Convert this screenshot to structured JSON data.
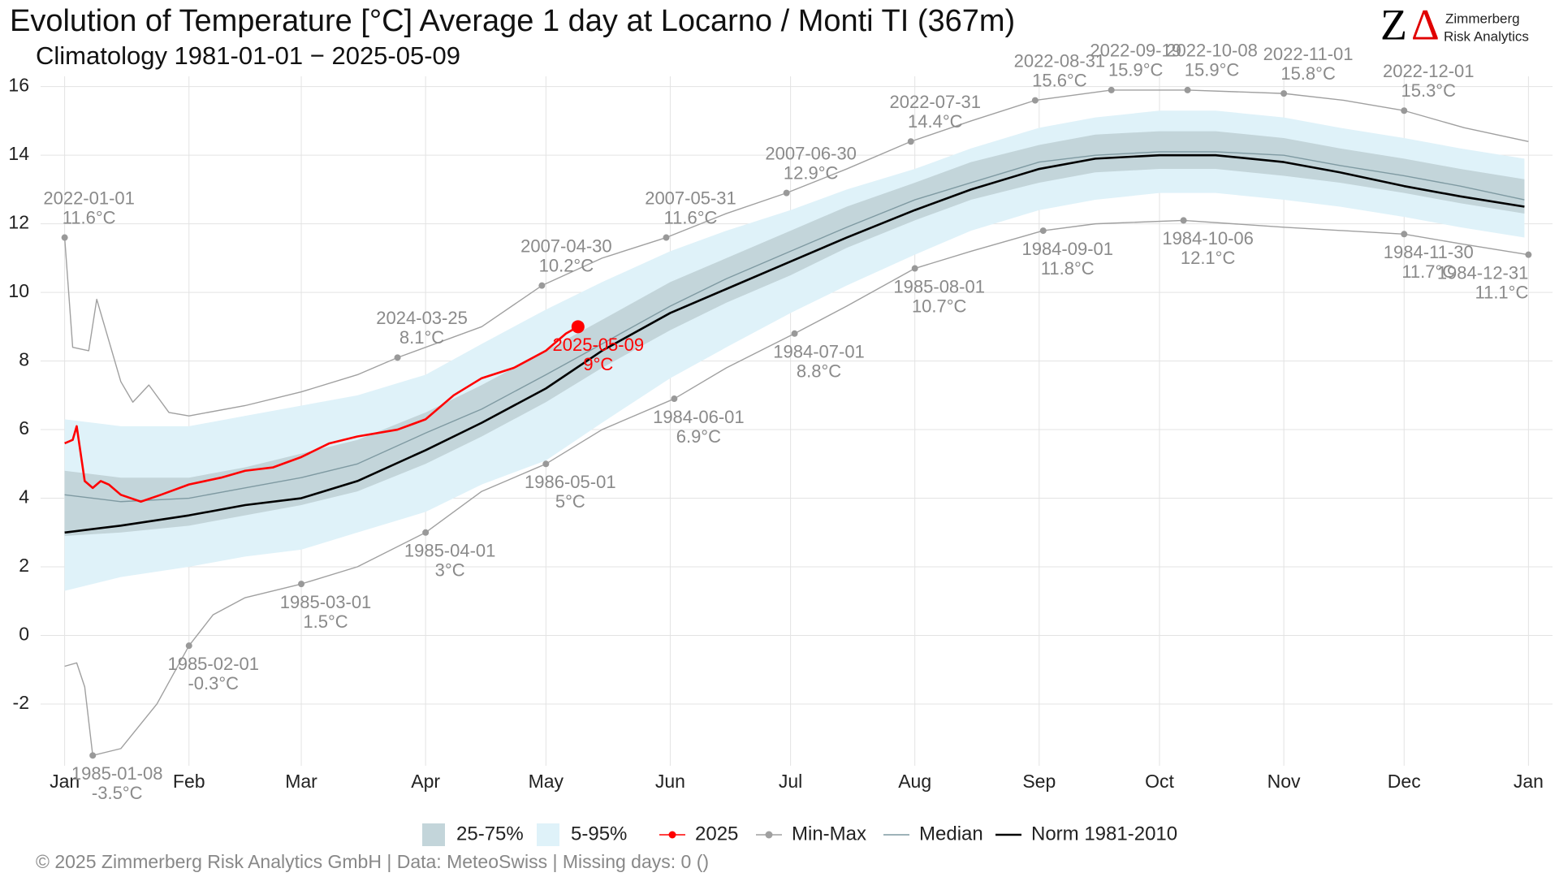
{
  "chart_data": {
    "type": "climate",
    "title": "Evolution of Temperature [°C] Average 1 day at Locarno / Monti  TI (367m)",
    "subtitle": "Climatology 1981-01-01 − 2025-05-09",
    "logo": {
      "mark_z": "Z",
      "mark_delta": "Δ",
      "line1": "Zimmerberg",
      "line2": "Risk Analytics"
    },
    "footer": "©  2025 Zimmerberg Risk Analytics GmbH | Data: MeteoSwiss | Missing days: 0 ()",
    "xlim": [
      -5,
      372
    ],
    "ylim": [
      -3.8,
      16.3
    ],
    "yticks": [
      -2,
      0,
      2,
      4,
      6,
      8,
      10,
      12,
      14,
      16
    ],
    "xticks": [
      {
        "value": 1,
        "label": "Jan"
      },
      {
        "value": 32,
        "label": "Feb"
      },
      {
        "value": 60,
        "label": "Mar"
      },
      {
        "value": 91,
        "label": "Apr"
      },
      {
        "value": 121,
        "label": "May"
      },
      {
        "value": 152,
        "label": "Jun"
      },
      {
        "value": 182,
        "label": "Jul"
      },
      {
        "value": 213,
        "label": "Aug"
      },
      {
        "value": 244,
        "label": "Sep"
      },
      {
        "value": 274,
        "label": "Oct"
      },
      {
        "value": 305,
        "label": "Nov"
      },
      {
        "value": 335,
        "label": "Dec"
      },
      {
        "value": 366,
        "label": "Jan"
      }
    ],
    "grid": true,
    "x": [
      1,
      15,
      32,
      46,
      60,
      74,
      91,
      105,
      121,
      135,
      152,
      166,
      182,
      196,
      213,
      227,
      244,
      258,
      274,
      288,
      305,
      319,
      335,
      349,
      365
    ],
    "bands": [
      {
        "name": "5-95%",
        "color": "#dff2f9",
        "lower": [
          1.3,
          1.7,
          2.0,
          2.3,
          2.5,
          3.0,
          3.6,
          4.4,
          5.1,
          6.2,
          7.5,
          8.4,
          9.4,
          10.2,
          11.1,
          11.8,
          12.4,
          12.7,
          12.9,
          12.9,
          12.7,
          12.5,
          12.2,
          11.9,
          11.6
        ],
        "upper": [
          6.3,
          6.1,
          6.1,
          6.4,
          6.7,
          7.0,
          7.6,
          8.5,
          9.5,
          10.3,
          11.2,
          11.8,
          12.4,
          13.0,
          13.6,
          14.2,
          14.8,
          15.1,
          15.3,
          15.3,
          15.1,
          14.8,
          14.5,
          14.2,
          13.9
        ]
      },
      {
        "name": "25-75%",
        "color": "#c3d5da",
        "lower": [
          2.9,
          3.0,
          3.2,
          3.5,
          3.8,
          4.2,
          5.0,
          5.8,
          6.8,
          7.8,
          8.9,
          9.7,
          10.5,
          11.3,
          12.1,
          12.7,
          13.2,
          13.5,
          13.6,
          13.6,
          13.4,
          13.2,
          12.9,
          12.6,
          12.3
        ],
        "upper": [
          4.8,
          4.6,
          4.6,
          4.9,
          5.3,
          5.7,
          6.5,
          7.3,
          8.3,
          9.2,
          10.3,
          11.0,
          11.8,
          12.5,
          13.2,
          13.8,
          14.3,
          14.6,
          14.7,
          14.7,
          14.5,
          14.2,
          13.9,
          13.6,
          13.3
        ]
      }
    ],
    "series": [
      {
        "name": "Min-Max",
        "color": "#a0a0a0",
        "lines": [
          {
            "x": [
              1,
              4,
              6,
              8,
              15,
              24,
              32,
              38,
              46,
              60,
              74,
              91,
              105,
              121,
              135,
              153,
              166,
              183,
              196,
              213,
              227,
              245,
              258,
              280,
              305,
              335,
              350,
              366
            ],
            "values": [
              -0.9,
              -0.8,
              -1.5,
              -3.5,
              -3.3,
              -2.0,
              -0.3,
              0.6,
              1.1,
              1.5,
              2.0,
              3.0,
              4.2,
              5.0,
              6.0,
              6.9,
              7.8,
              8.8,
              9.6,
              10.7,
              11.2,
              11.8,
              12.0,
              12.1,
              11.9,
              11.7,
              11.4,
              11.1
            ]
          },
          {
            "x": [
              1,
              3,
              7,
              9,
              15,
              18,
              22,
              27,
              32,
              46,
              60,
              74,
              84,
              105,
              120,
              135,
              151,
              166,
              181,
              196,
              212,
              227,
              243,
              262,
              281,
              305,
              320,
              335,
              350,
              366
            ],
            "values": [
              11.6,
              8.4,
              8.3,
              9.8,
              7.4,
              6.8,
              7.3,
              6.5,
              6.4,
              6.7,
              7.1,
              7.6,
              8.1,
              9.0,
              10.2,
              11.0,
              11.6,
              12.3,
              12.9,
              13.6,
              14.4,
              15.0,
              15.6,
              15.9,
              15.9,
              15.8,
              15.6,
              15.3,
              14.8,
              14.4
            ]
          }
        ]
      },
      {
        "name": "Median",
        "color": "#7f9aa2",
        "lines": [
          {
            "values": [
              4.1,
              3.9,
              4.0,
              4.3,
              4.6,
              5.0,
              5.9,
              6.6,
              7.6,
              8.5,
              9.6,
              10.4,
              11.2,
              11.9,
              12.7,
              13.2,
              13.8,
              14.0,
              14.1,
              14.1,
              14.0,
              13.7,
              13.4,
              13.1,
              12.7
            ]
          }
        ]
      },
      {
        "name": "Norm 1981-2010",
        "color": "#000000",
        "lines": [
          {
            "values": [
              3.0,
              3.2,
              3.5,
              3.8,
              4.0,
              4.5,
              5.4,
              6.2,
              7.2,
              8.3,
              9.4,
              10.1,
              10.9,
              11.6,
              12.4,
              13.0,
              13.6,
              13.9,
              14.0,
              14.0,
              13.8,
              13.5,
              13.1,
              12.8,
              12.5
            ]
          }
        ]
      },
      {
        "name": "2025",
        "color": "#ff0000",
        "lines": [
          {
            "x": [
              1,
              3,
              4,
              6,
              8,
              10,
              12,
              15,
              20,
              25,
              32,
              40,
              46,
              53,
              60,
              67,
              74,
              84,
              91,
              98,
              105,
              113,
              121,
              126,
              129
            ],
            "values": [
              5.6,
              5.7,
              6.1,
              4.5,
              4.3,
              4.5,
              4.4,
              4.1,
              3.9,
              4.1,
              4.4,
              4.6,
              4.8,
              4.9,
              5.2,
              5.6,
              5.8,
              6.0,
              6.3,
              7.0,
              7.5,
              7.8,
              8.3,
              8.8,
              9.0
            ]
          }
        ]
      }
    ],
    "max_annotations": [
      {
        "date": "2022-01-01",
        "x": 1,
        "value": 11.6,
        "label": "11.6°C"
      },
      {
        "date": "2024-03-25",
        "x": 84,
        "value": 8.1,
        "label": "8.1°C"
      },
      {
        "date": "2007-04-30",
        "x": 120,
        "value": 10.2,
        "label": "10.2°C"
      },
      {
        "date": "2007-05-31",
        "x": 151,
        "value": 11.6,
        "label": "11.6°C"
      },
      {
        "date": "2007-06-30",
        "x": 181,
        "value": 12.9,
        "label": "12.9°C"
      },
      {
        "date": "2022-07-31",
        "x": 212,
        "value": 14.4,
        "label": "14.4°C"
      },
      {
        "date": "2022-08-31",
        "x": 243,
        "value": 15.6,
        "label": "15.6°C"
      },
      {
        "date": "2022-09-19",
        "x": 262,
        "value": 15.9,
        "label": "15.9°C"
      },
      {
        "date": "2022-10-08",
        "x": 281,
        "value": 15.9,
        "label": "15.9°C"
      },
      {
        "date": "2022-11-01",
        "x": 305,
        "value": 15.8,
        "label": "15.8°C"
      },
      {
        "date": "2022-12-01",
        "x": 335,
        "value": 15.3,
        "label": "15.3°C"
      }
    ],
    "min_annotations": [
      {
        "date": "1985-01-08",
        "x": 8,
        "value": -3.5,
        "label": "-3.5°C"
      },
      {
        "date": "1985-02-01",
        "x": 32,
        "value": -0.3,
        "label": "-0.3°C"
      },
      {
        "date": "1985-03-01",
        "x": 60,
        "value": 1.5,
        "label": "1.5°C"
      },
      {
        "date": "1985-04-01",
        "x": 91,
        "value": 3,
        "label": "3°C"
      },
      {
        "date": "1986-05-01",
        "x": 121,
        "value": 5,
        "label": "5°C"
      },
      {
        "date": "1984-06-01",
        "x": 153,
        "value": 6.9,
        "label": "6.9°C"
      },
      {
        "date": "1984-07-01",
        "x": 183,
        "value": 8.8,
        "label": "8.8°C"
      },
      {
        "date": "1985-08-01",
        "x": 213,
        "value": 10.7,
        "label": "10.7°C"
      },
      {
        "date": "1984-09-01",
        "x": 245,
        "value": 11.8,
        "label": "11.8°C"
      },
      {
        "date": "1984-10-06",
        "x": 280,
        "value": 12.1,
        "label": "12.1°C"
      },
      {
        "date": "1984-11-30",
        "x": 335,
        "value": 11.7,
        "label": "11.7°C"
      },
      {
        "date": "1984-12-31",
        "x": 366,
        "value": 11.1,
        "label": "11.1°C"
      }
    ],
    "current": {
      "date": "2025-05-09",
      "x": 129,
      "value": 9,
      "label": "9°C",
      "color": "#ff0000"
    }
  }
}
